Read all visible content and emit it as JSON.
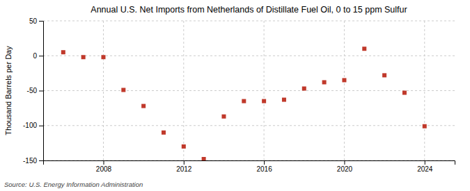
{
  "chart_data": {
    "type": "scatter",
    "title": "Annual U.S. Net Imports from Netherlands of Distillate Fuel Oil, 0 to 15 ppm Sulfur",
    "ylabel": "Thousand Barrels per Day",
    "annotations": [
      "Source: U.S. Energy Information Administration"
    ],
    "x": [
      2006,
      2007,
      2008,
      2009,
      2010,
      2011,
      2012,
      2013,
      2014,
      2015,
      2016,
      2017,
      2018,
      2019,
      2020,
      2021,
      2022,
      2023,
      2024
    ],
    "values": [
      5,
      -2,
      -2,
      -49,
      -72,
      -110,
      -130,
      -148,
      -87,
      -65,
      -65,
      -63,
      -47,
      -38,
      -35,
      10,
      -28,
      -53,
      -101
    ],
    "color": "#c0392b",
    "marker": "square",
    "xlim": [
      2005,
      2025.5
    ],
    "xticks": [
      2008,
      2012,
      2016,
      2020,
      2024
    ],
    "ylim": [
      -150,
      50
    ],
    "yticks": [
      -150,
      -100,
      -50,
      0,
      50
    ],
    "grid": true
  }
}
